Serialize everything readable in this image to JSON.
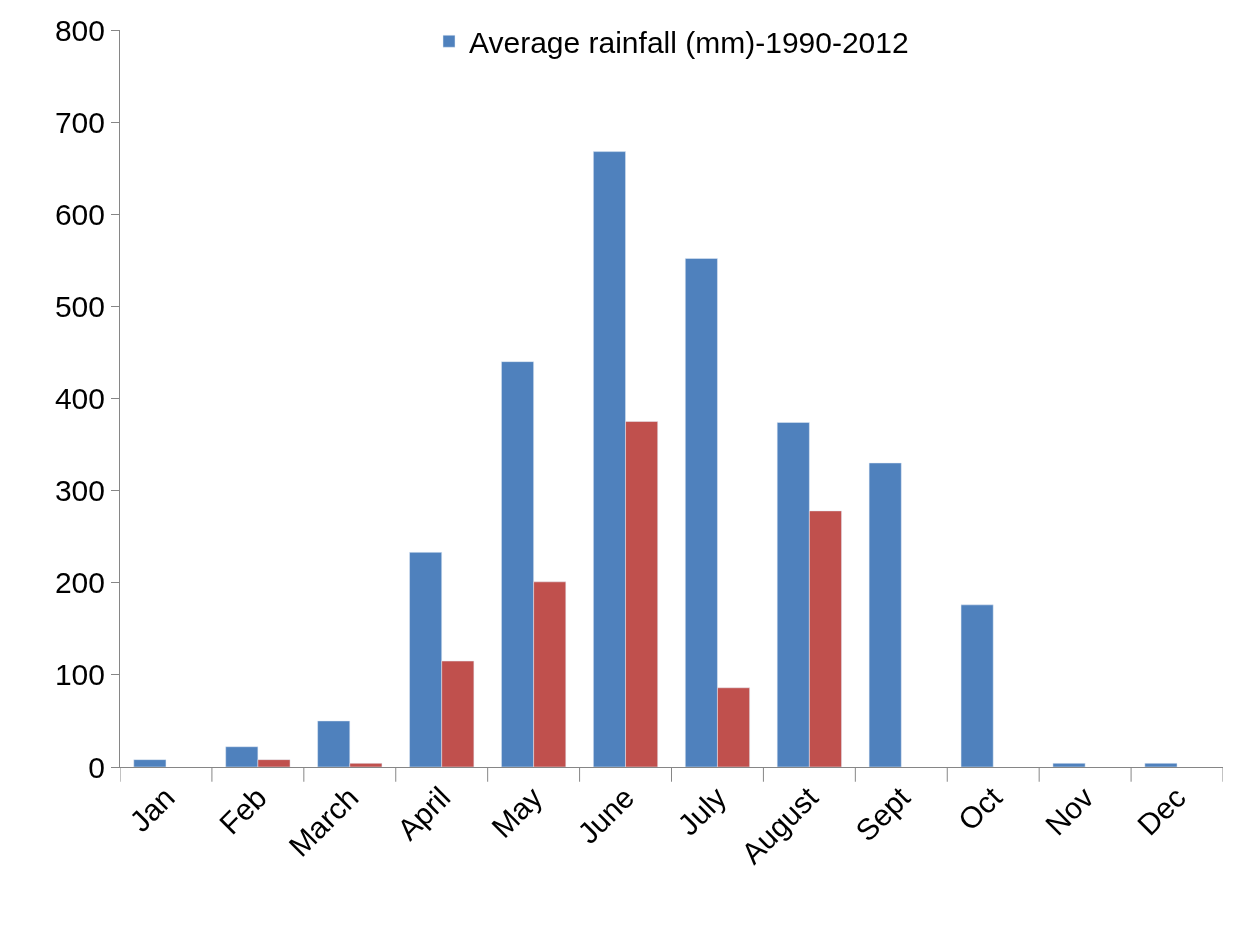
{
  "chart_data": {
    "type": "bar",
    "categories": [
      "Jan",
      "Feb",
      "March",
      "April",
      "May",
      "June",
      "July",
      "August",
      "Sept",
      "Oct",
      "Nov",
      "Dec"
    ],
    "series": [
      {
        "name": "Average rainfall (mm)-1990-2012",
        "color": "#4f81bd",
        "values": [
          8,
          22,
          50,
          233,
          440,
          668,
          552,
          374,
          330,
          176,
          4,
          4
        ]
      },
      {
        "color": "#c0504d",
        "values": [
          null,
          8,
          4,
          115,
          201,
          375,
          86,
          278,
          null,
          null,
          null,
          null
        ]
      }
    ],
    "ylim": [
      0,
      800
    ],
    "yticks": [
      0,
      100,
      200,
      300,
      400,
      500,
      600,
      700,
      800
    ],
    "legend": "top"
  }
}
